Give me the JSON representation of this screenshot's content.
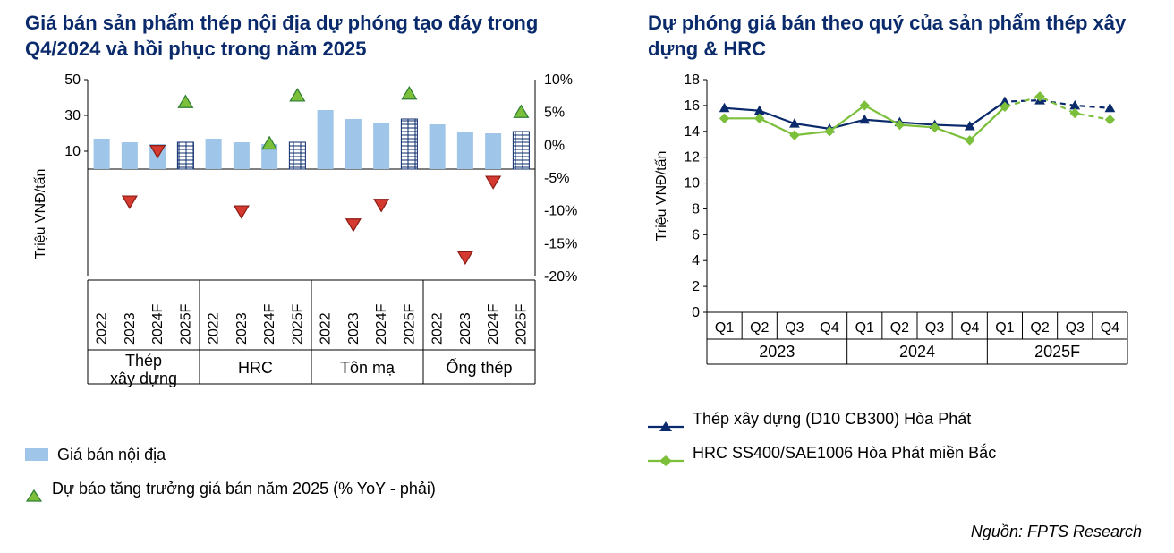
{
  "left_chart": {
    "title": "Giá bán sản phẩm thép nội địa dự phóng tạo đáy trong Q4/2024 và hồi phục trong năm 2025",
    "type": "bar+scatter",
    "y1_label": "Triệu VNĐ/tấn",
    "y1_ticks": [
      10,
      30,
      50
    ],
    "y1_min": 0,
    "y1_max": 50,
    "y2_ticks": [
      -20,
      -15,
      -10,
      -5,
      0,
      5,
      10
    ],
    "y2_min": -20,
    "y2_max": 10,
    "y2_tick_labels": [
      "-20%",
      "-15%",
      "-10%",
      "-5%",
      "0%",
      "5%",
      "10%"
    ],
    "groups": [
      {
        "name": "Thép xây dựng",
        "items": [
          {
            "label": "2022",
            "bar": 17,
            "marker": null
          },
          {
            "label": "2023",
            "bar": 15,
            "marker": -8.5
          },
          {
            "label": "2024F",
            "bar": 14,
            "marker": -0.8
          },
          {
            "label": "2025F",
            "bar": 15,
            "marker": 6.5,
            "hatch": true
          }
        ]
      },
      {
        "name": "HRC",
        "items": [
          {
            "label": "2022",
            "bar": 17,
            "marker": null
          },
          {
            "label": "2023",
            "bar": 15,
            "marker": -10
          },
          {
            "label": "2024F",
            "bar": 14,
            "marker": 0.2
          },
          {
            "label": "2025F",
            "bar": 15,
            "marker": 7.5,
            "hatch": true
          }
        ]
      },
      {
        "name": "Tôn mạ",
        "items": [
          {
            "label": "2022",
            "bar": 33,
            "marker": null
          },
          {
            "label": "2023",
            "bar": 28,
            "marker": -12
          },
          {
            "label": "2024F",
            "bar": 26,
            "marker": -9
          },
          {
            "label": "2025F",
            "bar": 28,
            "marker": 7.8,
            "hatch": true
          }
        ]
      },
      {
        "name": "Ống thép",
        "items": [
          {
            "label": "2022",
            "bar": 25,
            "marker": null
          },
          {
            "label": "2023",
            "bar": 21,
            "marker": -17
          },
          {
            "label": "2024F",
            "bar": 20,
            "marker": -5.5
          },
          {
            "label": "2025F",
            "bar": 21,
            "marker": 5,
            "hatch": true
          }
        ]
      }
    ],
    "bar_color": "#9fc5e8",
    "hatch_stroke": "#0a2a6b",
    "tri_up_fill": "#7bbf3b",
    "tri_up_stroke": "#2e7d32",
    "tri_dn_fill": "#d43a2f",
    "tri_dn_stroke": "#8b1c14",
    "axis_color": "#000000",
    "tick_font": 16,
    "xrot_font": 16,
    "group_font": 18,
    "legend": [
      {
        "kind": "bar",
        "label": "Giá bán nội địa"
      },
      {
        "kind": "tri",
        "label": "Dự báo tăng trưởng giá bán năm 2025 (% YoY - phải)"
      }
    ]
  },
  "right_chart": {
    "title": "Dự phóng giá bán theo quý của sản phẩm thép xây dựng & HRC",
    "type": "line",
    "y_label": "Triệu VNĐ/tấn",
    "y_ticks": [
      0,
      2,
      4,
      6,
      8,
      10,
      12,
      14,
      16,
      18
    ],
    "y_min": 0,
    "y_max": 18,
    "x_quarters": [
      "Q1",
      "Q2",
      "Q3",
      "Q4",
      "Q1",
      "Q2",
      "Q3",
      "Q4",
      "Q1",
      "Q2",
      "Q3",
      "Q4"
    ],
    "x_groups": [
      "2023",
      "2024",
      "2025F"
    ],
    "series": [
      {
        "name": "Thép xây dựng (D10 CB300) Hòa Phát",
        "color": "#0a2a6b",
        "marker": "triangle",
        "values": [
          15.8,
          15.6,
          14.6,
          14.2,
          14.9,
          14.7,
          14.5,
          14.4,
          16.3,
          16.4,
          16.0,
          15.8
        ],
        "forecast_from": 8
      },
      {
        "name": "HRC SS400/SAE1006 Hòa Phát miền Bắc",
        "color": "#7bbf3b",
        "marker": "diamond",
        "values": [
          15.0,
          15.0,
          13.7,
          14.0,
          16.0,
          14.5,
          14.3,
          13.3,
          15.9,
          16.7,
          15.4,
          14.9
        ],
        "forecast_from": 8
      }
    ],
    "axis_color": "#000000",
    "tick_font": 16,
    "group_font": 18
  },
  "source": "Nguồn: FPTS Research"
}
